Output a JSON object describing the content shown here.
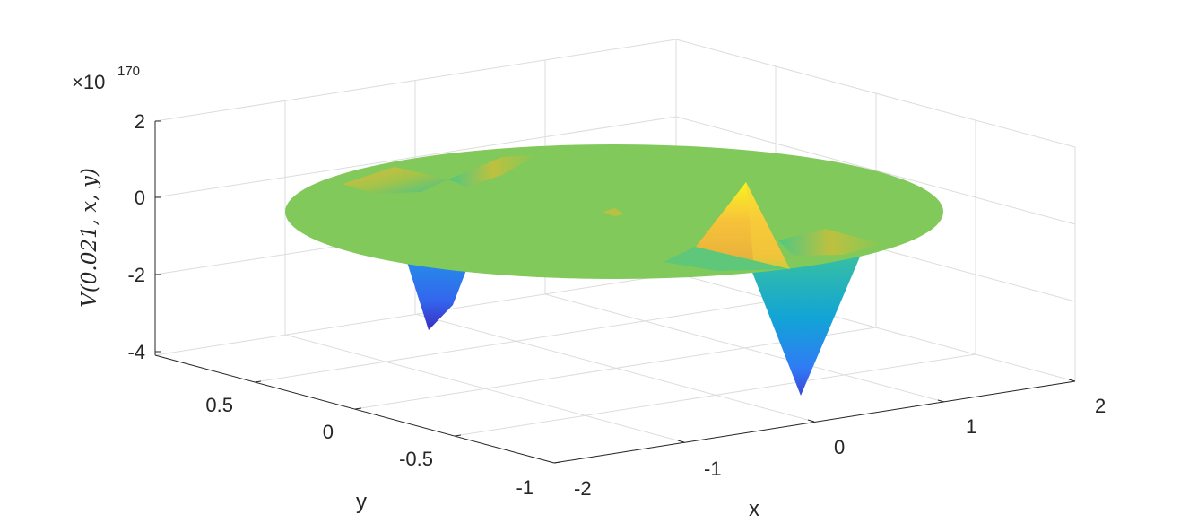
{
  "chart_data": {
    "type": "surface",
    "xlabel": "x",
    "ylabel": "y",
    "zlabel": "V(0.021, x, y)",
    "z_multiplier_base": "×10",
    "z_multiplier_exponent": "170",
    "xlim": [
      -2,
      2
    ],
    "ylim": [
      -1,
      1
    ],
    "zlim": [
      -4,
      2
    ],
    "x_ticks": [
      "-2",
      "-1",
      "0",
      "1",
      "2"
    ],
    "y_ticks": [
      "-1",
      "-0.5",
      "0",
      "0.5"
    ],
    "z_ticks": [
      "-4",
      "-2",
      "0",
      "2"
    ],
    "grid": true,
    "colormap": "parula",
    "domain": "disk, x in [-2,2], y in [-1,1]",
    "baseline_z": -0.3,
    "features": [
      {
        "kind": "spike",
        "x": 1.2,
        "y": 0.1,
        "z": -4.9
      },
      {
        "kind": "spike",
        "x": 0.9,
        "y": 0.3,
        "z": 0.7
      },
      {
        "kind": "spike",
        "x": -1.5,
        "y": 0.4,
        "z": -3.9
      },
      {
        "kind": "bump",
        "x": -1.6,
        "y": 0.7,
        "z": 0.45
      },
      {
        "kind": "bump",
        "x": -0.8,
        "y": 0.85,
        "z": 0.45
      },
      {
        "kind": "bump",
        "x": 1.5,
        "y": -0.15,
        "z": 0.3
      }
    ]
  }
}
